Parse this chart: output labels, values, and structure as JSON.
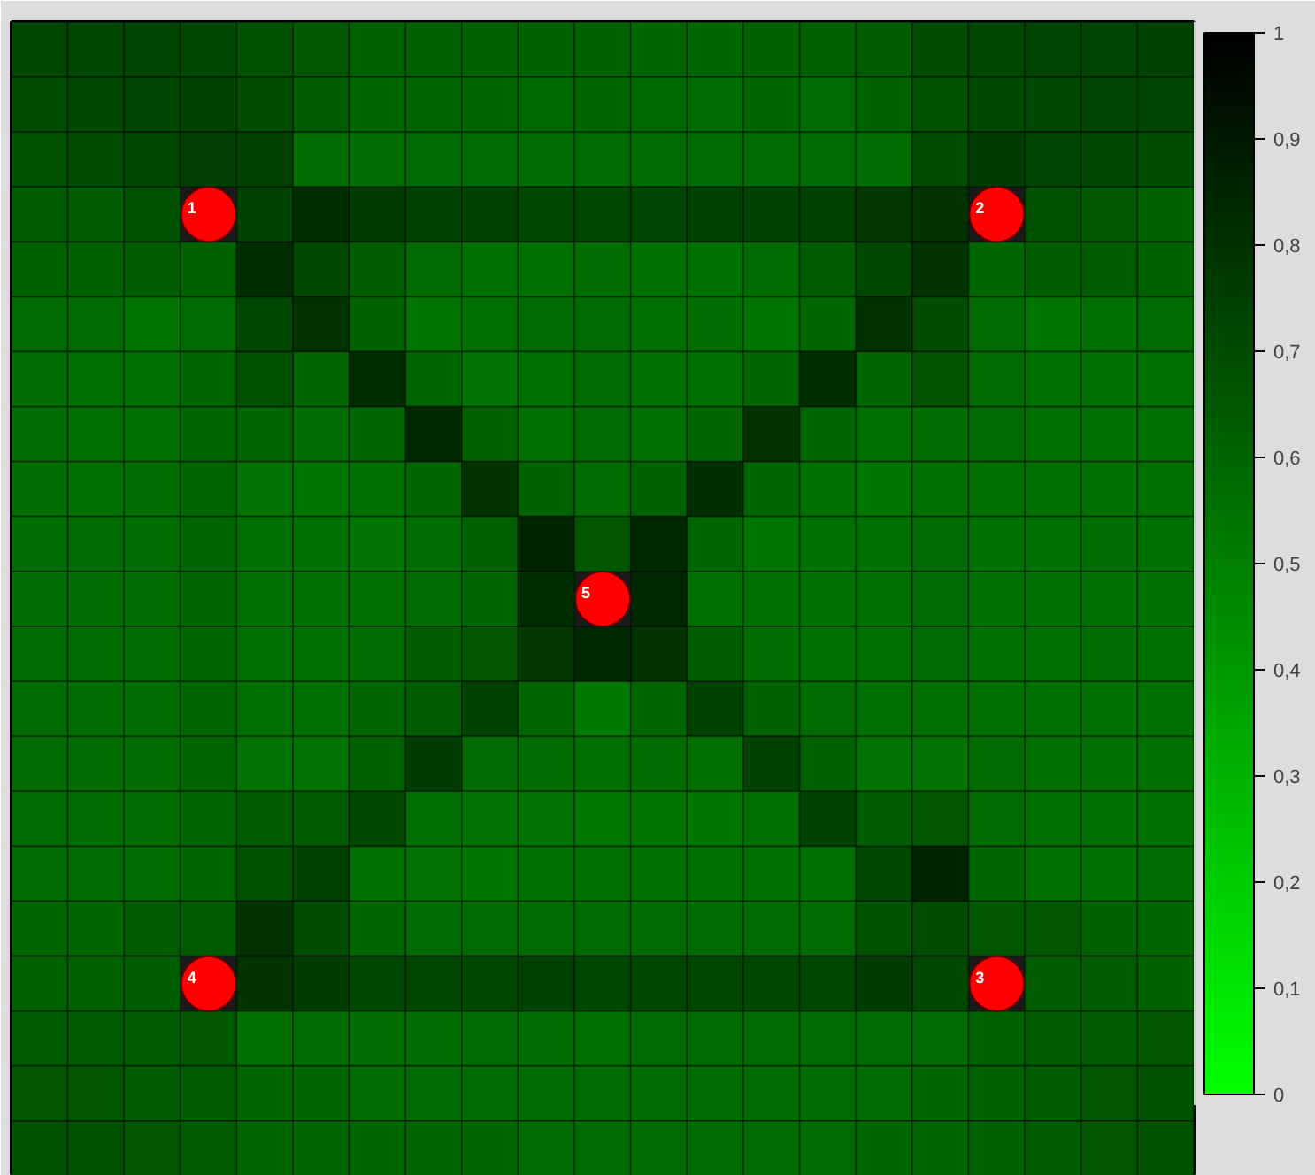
{
  "chart_data": {
    "type": "heatmap",
    "categories": [
      null,
      null,
      null,
      null,
      null,
      null,
      null,
      null,
      null,
      null,
      null,
      null,
      null,
      null,
      null,
      null,
      null,
      null,
      null,
      null,
      null
    ],
    "y_categories": [
      null,
      null,
      null,
      null,
      null,
      null,
      null,
      null,
      null,
      null,
      null,
      null,
      null,
      null,
      null,
      null,
      null,
      null,
      null,
      null,
      null
    ],
    "cells": [
      [
        0.72,
        0.72,
        0.73,
        0.72,
        0.68,
        0.65,
        0.62,
        0.62,
        0.61,
        0.61,
        0.61,
        0.6,
        0.6,
        0.61,
        0.62,
        0.64,
        0.7,
        0.72,
        0.73,
        0.73,
        0.74
      ],
      [
        0.7,
        0.72,
        0.73,
        0.74,
        0.7,
        0.64,
        0.6,
        0.6,
        0.6,
        0.59,
        0.6,
        0.59,
        0.58,
        0.6,
        0.58,
        0.62,
        0.68,
        0.71,
        0.72,
        0.73,
        0.73
      ],
      [
        0.68,
        0.7,
        0.72,
        0.75,
        0.74,
        0.57,
        0.57,
        0.58,
        0.58,
        0.58,
        0.58,
        0.58,
        0.58,
        0.58,
        0.58,
        0.57,
        0.7,
        0.76,
        0.73,
        0.72,
        0.7
      ],
      [
        0.64,
        0.63,
        0.68,
        null,
        0.74,
        0.82,
        0.76,
        0.74,
        0.74,
        0.72,
        0.72,
        0.73,
        0.74,
        0.74,
        0.74,
        0.78,
        0.8,
        null,
        0.68,
        0.65,
        0.62
      ],
      [
        0.62,
        0.62,
        0.64,
        0.62,
        0.82,
        0.72,
        0.63,
        0.58,
        0.56,
        0.56,
        0.57,
        0.56,
        0.56,
        0.58,
        0.64,
        0.72,
        0.8,
        0.6,
        0.63,
        0.64,
        0.62
      ],
      [
        0.58,
        0.58,
        0.54,
        0.58,
        0.72,
        0.8,
        0.62,
        0.54,
        0.56,
        0.58,
        0.58,
        0.56,
        0.57,
        0.54,
        0.6,
        0.8,
        0.7,
        0.58,
        0.54,
        0.56,
        0.58
      ],
      [
        0.57,
        0.56,
        0.56,
        0.6,
        0.68,
        0.6,
        0.82,
        0.6,
        0.55,
        0.56,
        0.58,
        0.56,
        0.56,
        0.6,
        0.82,
        0.6,
        0.67,
        0.58,
        0.56,
        0.56,
        0.56
      ],
      [
        0.57,
        0.56,
        0.56,
        0.6,
        0.6,
        0.57,
        0.6,
        0.84,
        0.62,
        0.56,
        0.58,
        0.56,
        0.6,
        0.8,
        0.6,
        0.56,
        0.57,
        0.58,
        0.56,
        0.56,
        0.56
      ],
      [
        0.57,
        0.56,
        0.57,
        0.6,
        0.55,
        0.54,
        0.56,
        0.6,
        0.8,
        0.62,
        0.58,
        0.62,
        0.82,
        0.6,
        0.56,
        0.54,
        0.56,
        0.56,
        0.56,
        0.56,
        0.56
      ],
      [
        0.57,
        0.58,
        0.57,
        0.6,
        0.56,
        0.56,
        0.55,
        0.57,
        0.62,
        0.86,
        0.66,
        0.84,
        0.6,
        0.54,
        0.56,
        0.56,
        0.58,
        0.56,
        0.56,
        0.57,
        0.56
      ],
      [
        0.57,
        0.57,
        0.57,
        0.6,
        0.56,
        0.56,
        0.56,
        0.58,
        0.6,
        0.82,
        null,
        0.84,
        0.56,
        0.56,
        0.56,
        0.56,
        0.58,
        0.56,
        0.56,
        0.56,
        0.56
      ],
      [
        0.58,
        0.57,
        0.57,
        0.6,
        0.56,
        0.56,
        0.57,
        0.63,
        0.66,
        0.78,
        0.84,
        0.8,
        0.64,
        0.57,
        0.56,
        0.56,
        0.58,
        0.56,
        0.56,
        0.57,
        0.56
      ],
      [
        0.58,
        0.57,
        0.57,
        0.6,
        0.56,
        0.56,
        0.6,
        0.64,
        0.74,
        0.6,
        0.52,
        0.6,
        0.74,
        0.62,
        0.58,
        0.56,
        0.56,
        0.56,
        0.56,
        0.56,
        0.56
      ],
      [
        0.58,
        0.57,
        0.57,
        0.6,
        0.55,
        0.55,
        0.62,
        0.76,
        0.58,
        0.57,
        0.56,
        0.57,
        0.56,
        0.74,
        0.62,
        0.55,
        0.55,
        0.58,
        0.56,
        0.56,
        0.56
      ],
      [
        0.58,
        0.57,
        0.57,
        0.6,
        0.64,
        0.64,
        0.72,
        0.56,
        0.55,
        0.55,
        0.53,
        0.54,
        0.54,
        0.56,
        0.74,
        0.64,
        0.66,
        0.58,
        0.56,
        0.56,
        0.56
      ],
      [
        0.58,
        0.58,
        0.57,
        0.6,
        0.68,
        0.74,
        0.56,
        0.55,
        0.54,
        0.56,
        0.56,
        0.56,
        0.56,
        0.56,
        0.56,
        0.72,
        0.86,
        0.6,
        0.56,
        0.56,
        0.58
      ],
      [
        0.6,
        0.6,
        0.64,
        0.64,
        0.8,
        0.7,
        0.6,
        0.58,
        0.58,
        0.58,
        0.58,
        0.58,
        0.58,
        0.58,
        0.58,
        0.68,
        0.7,
        0.66,
        0.66,
        0.62,
        0.6
      ],
      [
        0.62,
        0.62,
        0.64,
        null,
        0.8,
        0.76,
        0.72,
        0.72,
        0.72,
        0.74,
        0.72,
        0.72,
        0.72,
        0.72,
        0.72,
        0.76,
        0.72,
        null,
        0.64,
        0.64,
        0.62
      ],
      [
        0.64,
        0.64,
        0.64,
        0.66,
        0.56,
        0.57,
        0.57,
        0.57,
        0.58,
        0.57,
        0.56,
        0.58,
        0.58,
        0.58,
        0.58,
        0.58,
        0.58,
        0.62,
        0.64,
        0.64,
        0.66
      ],
      [
        0.66,
        0.66,
        0.64,
        0.64,
        0.6,
        0.6,
        0.58,
        0.58,
        0.58,
        0.58,
        0.58,
        0.58,
        0.58,
        0.58,
        0.58,
        0.58,
        0.6,
        0.62,
        0.64,
        0.66,
        0.68
      ],
      [
        0.68,
        0.68,
        0.66,
        0.64,
        0.6,
        0.6,
        0.6,
        0.6,
        0.6,
        0.58,
        0.58,
        0.58,
        0.58,
        0.58,
        0.58,
        0.6,
        0.6,
        0.62,
        0.64,
        0.66,
        0.68
      ]
    ],
    "colors": [
      "#00ff00",
      "#000000"
    ],
    "clim": [
      0,
      1
    ],
    "cticks": [
      0,
      {
        "value": 0.1,
        "label": "0,1"
      },
      {
        "value": 0.2,
        "label": "0,2"
      },
      {
        "value": 0.3,
        "label": "0,3"
      },
      {
        "value": 0.4,
        "label": "0,4"
      },
      {
        "value": 0.5,
        "label": "0,5"
      },
      {
        "value": 0.6,
        "label": "0,6"
      },
      {
        "value": 0.7,
        "label": "0,7"
      },
      {
        "value": 0.8,
        "label": "0,8"
      },
      {
        "value": 0.9,
        "label": "0,9"
      },
      1
    ],
    "tick_labels": false,
    "annotations": [
      "1",
      "2",
      "5",
      "4",
      "3"
    ]
  }
}
